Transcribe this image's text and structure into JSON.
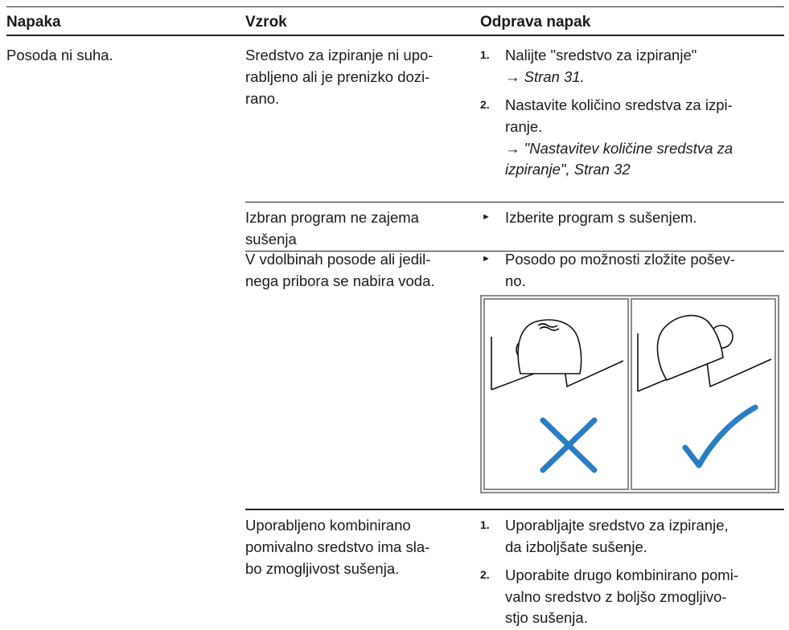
{
  "table": {
    "headers": [
      "Napaka",
      "Vzrok",
      "Odprava napak"
    ],
    "rows": [
      {
        "fault": "Posoda ni suha.",
        "causes": [
          {
            "lines": [
              "Sredstvo za izpiranje ni upo-",
              "rabljeno ali je prenizko dozi-",
              "rano."
            ],
            "remedies": [
              {
                "marker": "1.",
                "lines": [
                  "Nalijte \"sredstvo za izpiranje\"",
                  "→ Stran 31."
                ]
              },
              {
                "marker": "2.",
                "lines": [
                  "Nastavite količino sredstva za izpi-",
                  "ranje.",
                  "→ \"Nastavitev količine sredstva za",
                  "izpiranje\", Stran 32"
                ]
              }
            ]
          },
          {
            "lines": [
              "Izbran program ne zajema",
              "sušenja"
            ],
            "remedies": [
              {
                "marker": "►",
                "lines": [
                  "Izberite program s sušenjem."
                ]
              }
            ]
          },
          {
            "lines": [
              "V vdolbinah posode ali jedil-",
              "nega pribora se nabira voda."
            ],
            "remedies": [
              {
                "marker": "►",
                "lines": [
                  "Posodo po možnosti zložite pošev-",
                  "no."
                ]
              }
            ]
          },
          {
            "lines": [
              "Uporabljeno kombinirano",
              "pomivalno sredstvo ima sla-",
              "bo zmogljivost sušenja."
            ],
            "remedies": [
              {
                "marker": "1.",
                "lines": [
                  "Uporabljajte sredstvo za izpiranje,",
                  "da izboljšate sušenje."
                ]
              },
              {
                "marker": "2.",
                "lines": [
                  "Uporabite drugo kombinirano pomi-",
                  "valno sredstvo z boljšo zmogljivo-",
                  "stjo sušenja."
                ]
              }
            ]
          }
        ]
      }
    ]
  }
}
